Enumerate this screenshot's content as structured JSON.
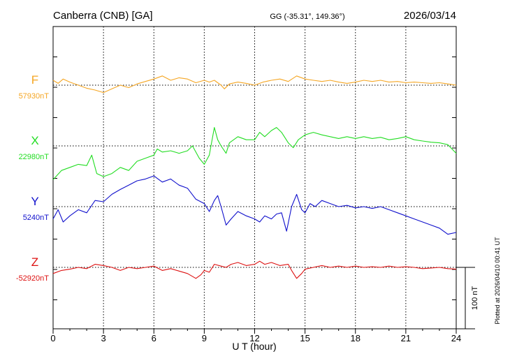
{
  "header": {
    "station": "Canberra (CNB)  [GA]",
    "coords": "GG (-35.31°, 149.36°)",
    "date": "2026/03/14"
  },
  "side_note": "Plotted at 2026/04/10 00:41 UT",
  "chart_data": {
    "type": "line",
    "xlabel": "U T (hour)",
    "xlim": [
      0,
      24
    ],
    "xticks": [
      0,
      3,
      6,
      9,
      12,
      15,
      18,
      21,
      24
    ],
    "grid": true,
    "scale_bar": {
      "value_nT": 100,
      "label": "100 nT"
    },
    "series": [
      {
        "name": "F",
        "baseline_label": "57930nT",
        "color": "#f5a623",
        "points": [
          [
            0,
            8
          ],
          [
            0.3,
            3
          ],
          [
            0.6,
            10
          ],
          [
            1,
            5
          ],
          [
            1.5,
            0
          ],
          [
            2,
            -5
          ],
          [
            2.5,
            -8
          ],
          [
            3,
            -12
          ],
          [
            3.5,
            -6
          ],
          [
            4,
            0
          ],
          [
            4.5,
            -4
          ],
          [
            5,
            2
          ],
          [
            5.5,
            6
          ],
          [
            6,
            10
          ],
          [
            6.5,
            15
          ],
          [
            7,
            8
          ],
          [
            7.5,
            12
          ],
          [
            8,
            10
          ],
          [
            8.5,
            4
          ],
          [
            9,
            8
          ],
          [
            9.3,
            5
          ],
          [
            9.6,
            8
          ],
          [
            10,
            0
          ],
          [
            10.2,
            -6
          ],
          [
            10.5,
            2
          ],
          [
            11,
            5
          ],
          [
            11.5,
            3
          ],
          [
            12,
            0
          ],
          [
            12.5,
            5
          ],
          [
            13,
            8
          ],
          [
            13.5,
            10
          ],
          [
            14,
            6
          ],
          [
            14.5,
            15
          ],
          [
            15,
            10
          ],
          [
            15.5,
            8
          ],
          [
            16,
            6
          ],
          [
            16.5,
            8
          ],
          [
            17,
            5
          ],
          [
            17.5,
            3
          ],
          [
            18,
            5
          ],
          [
            18.5,
            8
          ],
          [
            19,
            6
          ],
          [
            19.5,
            8
          ],
          [
            20,
            5
          ],
          [
            20.5,
            6
          ],
          [
            21,
            4
          ],
          [
            21.5,
            5
          ],
          [
            22,
            4
          ],
          [
            22.5,
            3
          ],
          [
            23,
            4
          ],
          [
            23.5,
            2
          ],
          [
            24,
            0
          ]
        ]
      },
      {
        "name": "X",
        "baseline_label": "22980nT",
        "color": "#22dd22",
        "points": [
          [
            0,
            -55
          ],
          [
            0.5,
            -40
          ],
          [
            1,
            -35
          ],
          [
            1.5,
            -30
          ],
          [
            2,
            -32
          ],
          [
            2.3,
            -15
          ],
          [
            2.6,
            -45
          ],
          [
            3,
            -50
          ],
          [
            3.5,
            -45
          ],
          [
            4,
            -35
          ],
          [
            4.5,
            -40
          ],
          [
            5,
            -25
          ],
          [
            5.5,
            -20
          ],
          [
            6,
            -15
          ],
          [
            6.2,
            -5
          ],
          [
            6.5,
            -10
          ],
          [
            7,
            -8
          ],
          [
            7.5,
            -12
          ],
          [
            8,
            -8
          ],
          [
            8.3,
            0
          ],
          [
            8.7,
            -20
          ],
          [
            9,
            -30
          ],
          [
            9.3,
            -15
          ],
          [
            9.6,
            30
          ],
          [
            9.8,
            10
          ],
          [
            10,
            0
          ],
          [
            10.3,
            -12
          ],
          [
            10.5,
            5
          ],
          [
            11,
            15
          ],
          [
            11.5,
            10
          ],
          [
            12,
            10
          ],
          [
            12.3,
            22
          ],
          [
            12.6,
            15
          ],
          [
            13,
            25
          ],
          [
            13.3,
            30
          ],
          [
            13.6,
            22
          ],
          [
            14,
            5
          ],
          [
            14.3,
            -3
          ],
          [
            14.6,
            10
          ],
          [
            15,
            18
          ],
          [
            15.5,
            22
          ],
          [
            16,
            18
          ],
          [
            16.5,
            15
          ],
          [
            17,
            12
          ],
          [
            17.5,
            15
          ],
          [
            18,
            12
          ],
          [
            18.5,
            15
          ],
          [
            19,
            12
          ],
          [
            19.5,
            14
          ],
          [
            20,
            10
          ],
          [
            20.5,
            12
          ],
          [
            21,
            15
          ],
          [
            21.5,
            10
          ],
          [
            22,
            8
          ],
          [
            22.5,
            6
          ],
          [
            23,
            5
          ],
          [
            23.5,
            2
          ],
          [
            24,
            -12
          ]
        ]
      },
      {
        "name": "Y",
        "baseline_label": "5240nT",
        "color": "#1010cc",
        "points": [
          [
            0,
            -20
          ],
          [
            0.3,
            -5
          ],
          [
            0.6,
            -25
          ],
          [
            1,
            -15
          ],
          [
            1.5,
            -5
          ],
          [
            2,
            -10
          ],
          [
            2.5,
            10
          ],
          [
            3,
            8
          ],
          [
            3.5,
            20
          ],
          [
            4,
            28
          ],
          [
            4.5,
            35
          ],
          [
            5,
            42
          ],
          [
            5.5,
            45
          ],
          [
            6,
            50
          ],
          [
            6.5,
            40
          ],
          [
            7,
            45
          ],
          [
            7.5,
            35
          ],
          [
            8,
            30
          ],
          [
            8.5,
            12
          ],
          [
            9,
            5
          ],
          [
            9.3,
            -8
          ],
          [
            9.6,
            10
          ],
          [
            9.8,
            18
          ],
          [
            10,
            0
          ],
          [
            10.3,
            -30
          ],
          [
            10.6,
            -20
          ],
          [
            11,
            -8
          ],
          [
            11.5,
            -15
          ],
          [
            12,
            -20
          ],
          [
            12.3,
            -25
          ],
          [
            12.6,
            -15
          ],
          [
            13,
            -20
          ],
          [
            13.3,
            -12
          ],
          [
            13.6,
            -10
          ],
          [
            13.9,
            -40
          ],
          [
            14.2,
            0
          ],
          [
            14.5,
            20
          ],
          [
            14.8,
            -5
          ],
          [
            15,
            -10
          ],
          [
            15.3,
            5
          ],
          [
            15.6,
            0
          ],
          [
            16,
            10
          ],
          [
            16.5,
            5
          ],
          [
            17,
            0
          ],
          [
            17.5,
            2
          ],
          [
            18,
            -2
          ],
          [
            18.5,
            0
          ],
          [
            19,
            -3
          ],
          [
            19.5,
            0
          ],
          [
            20,
            -5
          ],
          [
            20.5,
            -10
          ],
          [
            21,
            -15
          ],
          [
            21.5,
            -20
          ],
          [
            22,
            -25
          ],
          [
            22.5,
            -30
          ],
          [
            23,
            -35
          ],
          [
            23.5,
            -45
          ],
          [
            24,
            -42
          ]
        ]
      },
      {
        "name": "Z",
        "baseline_label": "-52920nT",
        "color": "#dd1111",
        "points": [
          [
            0,
            -10
          ],
          [
            0.5,
            -5
          ],
          [
            1,
            -3
          ],
          [
            1.5,
            0
          ],
          [
            2,
            -2
          ],
          [
            2.5,
            5
          ],
          [
            3,
            3
          ],
          [
            3.5,
            0
          ],
          [
            4,
            -5
          ],
          [
            4.5,
            0
          ],
          [
            5,
            -2
          ],
          [
            5.5,
            0
          ],
          [
            6,
            2
          ],
          [
            6.5,
            -5
          ],
          [
            7,
            -2
          ],
          [
            7.5,
            -6
          ],
          [
            8,
            -10
          ],
          [
            8.5,
            -18
          ],
          [
            8.8,
            -12
          ],
          [
            9,
            -5
          ],
          [
            9.3,
            -8
          ],
          [
            9.6,
            5
          ],
          [
            10,
            2
          ],
          [
            10.3,
            0
          ],
          [
            10.6,
            5
          ],
          [
            11,
            8
          ],
          [
            11.5,
            3
          ],
          [
            12,
            5
          ],
          [
            12.3,
            10
          ],
          [
            12.6,
            5
          ],
          [
            13,
            8
          ],
          [
            13.5,
            3
          ],
          [
            14,
            5
          ],
          [
            14.2,
            -5
          ],
          [
            14.5,
            -18
          ],
          [
            14.8,
            -10
          ],
          [
            15,
            -3
          ],
          [
            15.5,
            0
          ],
          [
            16,
            3
          ],
          [
            16.5,
            0
          ],
          [
            17,
            2
          ],
          [
            17.5,
            0
          ],
          [
            18,
            2
          ],
          [
            18.5,
            0
          ],
          [
            19,
            1
          ],
          [
            19.5,
            0
          ],
          [
            20,
            2
          ],
          [
            20.5,
            0
          ],
          [
            21,
            1
          ],
          [
            21.5,
            0
          ],
          [
            22,
            -2
          ],
          [
            22.5,
            -1
          ],
          [
            23,
            0
          ],
          [
            23.5,
            -2
          ],
          [
            24,
            -3
          ]
        ]
      }
    ]
  }
}
